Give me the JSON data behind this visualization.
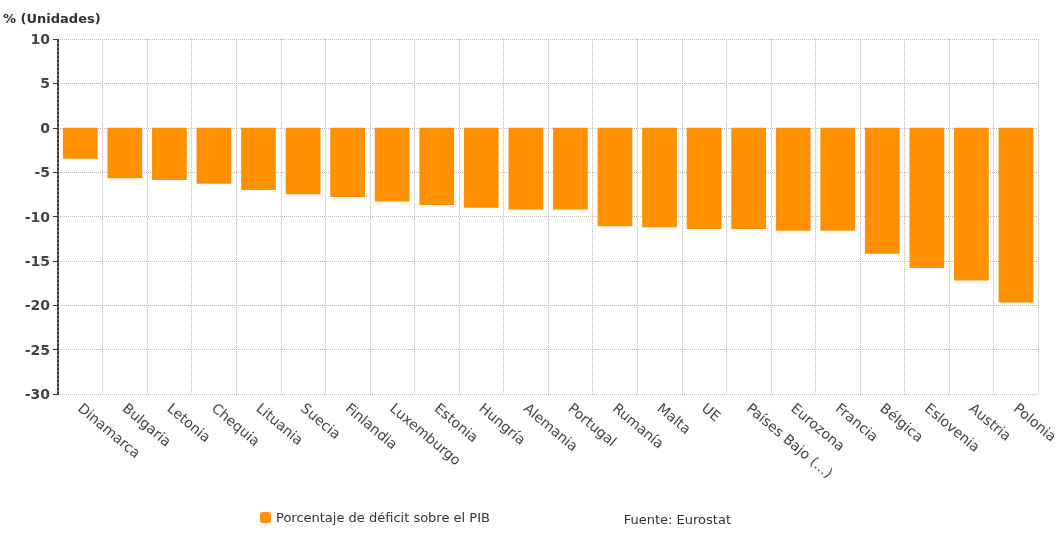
{
  "chart_data": {
    "type": "bar",
    "ylabel": "% (Unidades)",
    "categories": [
      "Dinamarca",
      "Bulgaria",
      "Letonia",
      "Chequia",
      "Lituania",
      "Suecia",
      "Finlandia",
      "Luxemburgo",
      "Estonia",
      "Hungría",
      "Alemania",
      "Portugal",
      "Rumanía",
      "Malta",
      "UE",
      "Países Bajo (...)",
      "Eurozona",
      "Francia",
      "Bélgica",
      "Eslovenia",
      "Austria",
      "Polonia"
    ],
    "series": [
      {
        "name": "Porcentaje de déficit sobre el PIB",
        "color": "#ff9000",
        "values": [
          -3.5,
          -5.7,
          -5.9,
          -6.3,
          -7.0,
          -7.5,
          -7.8,
          -8.3,
          -8.7,
          -9.0,
          -9.2,
          -9.2,
          -11.1,
          -11.2,
          -11.4,
          -11.4,
          -11.6,
          -11.6,
          -14.2,
          -15.8,
          -17.2,
          -19.7
        ]
      }
    ],
    "ylim": [
      -30,
      10
    ],
    "yticks": [
      -30,
      -25,
      -20,
      -15,
      -10,
      -5,
      0,
      5,
      10
    ],
    "grid": true,
    "legend": "bottom",
    "annotations": [
      "Fuente: Eurostat"
    ]
  }
}
